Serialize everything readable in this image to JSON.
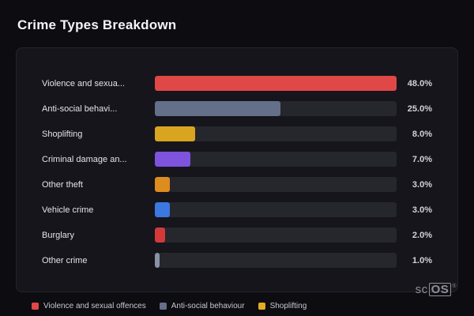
{
  "page": {
    "title": "Crime Types Breakdown"
  },
  "chart_data": {
    "type": "bar",
    "orientation": "horizontal",
    "title": "Crime Types Breakdown",
    "categories": [
      "Violence and sexua...",
      "Anti-social behavi...",
      "Shoplifting",
      "Criminal damage an...",
      "Other theft",
      "Vehicle crime",
      "Burglary",
      "Other crime"
    ],
    "values": [
      48.0,
      25.0,
      8.0,
      7.0,
      3.0,
      3.0,
      2.0,
      1.0
    ],
    "value_labels": [
      "48.0%",
      "25.0%",
      "8.0%",
      "7.0%",
      "3.0%",
      "3.0%",
      "2.0%",
      "1.0%"
    ],
    "colors": [
      "#e04747",
      "#64708a",
      "#d9a521",
      "#7e53dd",
      "#dd8c1f",
      "#3b78e0",
      "#d23a3a",
      "#8a93a5"
    ],
    "xlim": [
      0,
      48
    ],
    "grid": false,
    "legend_position": "bottom-left"
  },
  "legend": {
    "items": [
      {
        "label": "Violence and sexual offences",
        "color": "#e04747"
      },
      {
        "label": "Anti-social behaviour",
        "color": "#64708a"
      },
      {
        "label": "Shoplifting",
        "color": "#e3ac25"
      }
    ]
  },
  "branding": {
    "prefix": "sc",
    "box": "OS",
    "registered": "®"
  }
}
